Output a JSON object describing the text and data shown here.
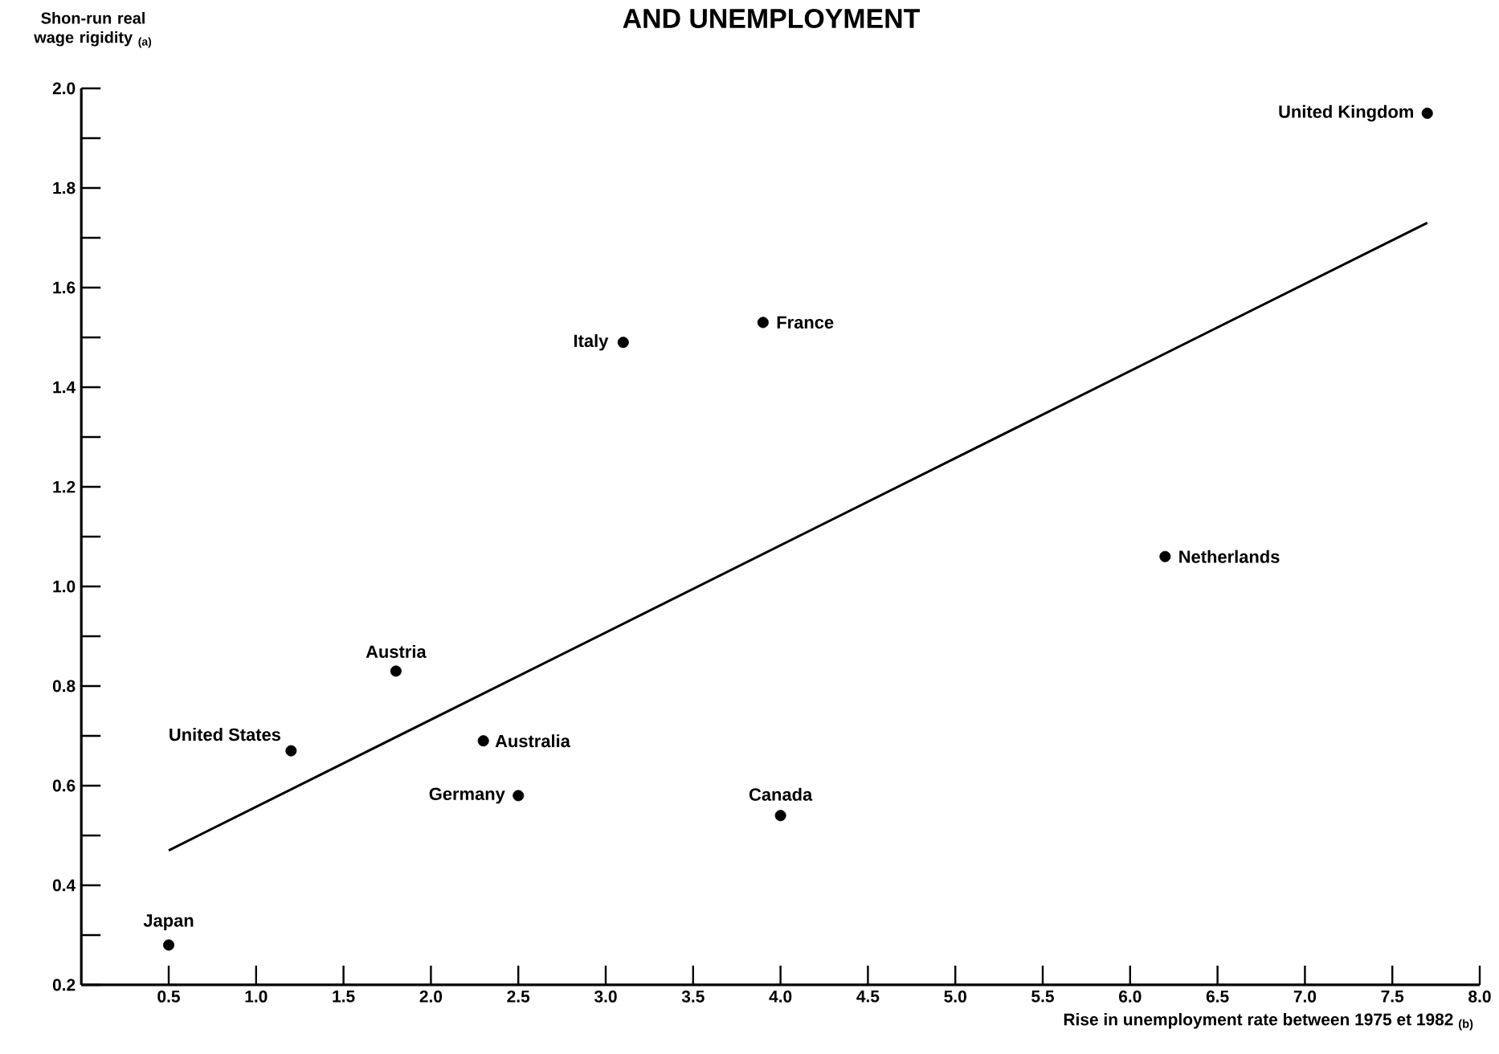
{
  "chart_data": {
    "type": "scatter",
    "title": "AND UNEMPLOYMENT",
    "xlabel": "Rise in unemployment rate between 1975 et 1982 $_{(b)}$",
    "ylabel": "Shon-run real wage rigidity $_{(a)}$",
    "xlim": [
      0,
      8.0
    ],
    "ylim": [
      0.2,
      2.0
    ],
    "xticks": [
      {
        "value": 0.5,
        "label": "0.5"
      },
      {
        "value": 1.0,
        "label": "1.0"
      },
      {
        "value": 1.5,
        "label": "1.5"
      },
      {
        "value": 2.0,
        "label": "2.0"
      },
      {
        "value": 2.5,
        "label": "2.5"
      },
      {
        "value": 3.0,
        "label": "3.0"
      },
      {
        "value": 3.5,
        "label": "3.5"
      },
      {
        "value": 4.0,
        "label": "4.0"
      },
      {
        "value": 4.5,
        "label": "4.5"
      },
      {
        "value": 5.0,
        "label": "5.0"
      },
      {
        "value": 5.5,
        "label": "5.5"
      },
      {
        "value": 6.0,
        "label": "6.0"
      },
      {
        "value": 6.5,
        "label": "6.5"
      },
      {
        "value": 7.0,
        "label": "7.0"
      },
      {
        "value": 7.5,
        "label": "7.5"
      },
      {
        "value": 8.0,
        "label": "8.0"
      }
    ],
    "yticks": [
      {
        "value": 0.2,
        "label": "0.2"
      },
      {
        "value": 0.3,
        "label": null
      },
      {
        "value": 0.4,
        "label": "0.4"
      },
      {
        "value": 0.5,
        "label": null
      },
      {
        "value": 0.6,
        "label": "0.6"
      },
      {
        "value": 0.7,
        "label": null
      },
      {
        "value": 0.8,
        "label": "0.8"
      },
      {
        "value": 0.9,
        "label": null
      },
      {
        "value": 1.0,
        "label": "1.0"
      },
      {
        "value": 1.1,
        "label": null
      },
      {
        "value": 1.2,
        "label": "1.2"
      },
      {
        "value": 1.3,
        "label": null
      },
      {
        "value": 1.4,
        "label": "1.4"
      },
      {
        "value": 1.5,
        "label": null
      },
      {
        "value": 1.6,
        "label": "1.6"
      },
      {
        "value": 1.7,
        "label": null
      },
      {
        "value": 1.8,
        "label": "1.8"
      },
      {
        "value": 1.9,
        "label": null
      },
      {
        "value": 2.0,
        "label": "2.0"
      }
    ],
    "series": [
      {
        "marker": "circle",
        "color": "#000000",
        "x": [
          0.5,
          1.2,
          1.8,
          2.3,
          2.5,
          4.0,
          3.1,
          3.9,
          6.2,
          7.7
        ],
        "values": [
          0.28,
          0.67,
          0.83,
          0.69,
          0.58,
          0.54,
          1.49,
          1.53,
          1.06,
          1.95
        ]
      },
      {
        "type": "line",
        "color": "#000000",
        "marker": "none",
        "x": [
          0.5,
          7.7
        ],
        "values": [
          0.47,
          1.73
        ]
      }
    ],
    "annotations": [
      {
        "text": "Japan",
        "x": 0.5,
        "y": 0.28
      },
      {
        "text": "United States",
        "x": 1.2,
        "y": 0.67
      },
      {
        "text": "Austria",
        "x": 1.8,
        "y": 0.83
      },
      {
        "text": "Australia",
        "x": 2.3,
        "y": 0.69
      },
      {
        "text": "Germany",
        "x": 2.5,
        "y": 0.58
      },
      {
        "text": "Canada",
        "x": 4.0,
        "y": 0.54
      },
      {
        "text": "Italy",
        "x": 3.1,
        "y": 1.49
      },
      {
        "text": "France",
        "x": 3.9,
        "y": 1.53
      },
      {
        "text": "Netherlands",
        "x": 6.2,
        "y": 1.06
      },
      {
        "text": "United Kingdom",
        "x": 7.7,
        "y": 1.95
      }
    ]
  }
}
